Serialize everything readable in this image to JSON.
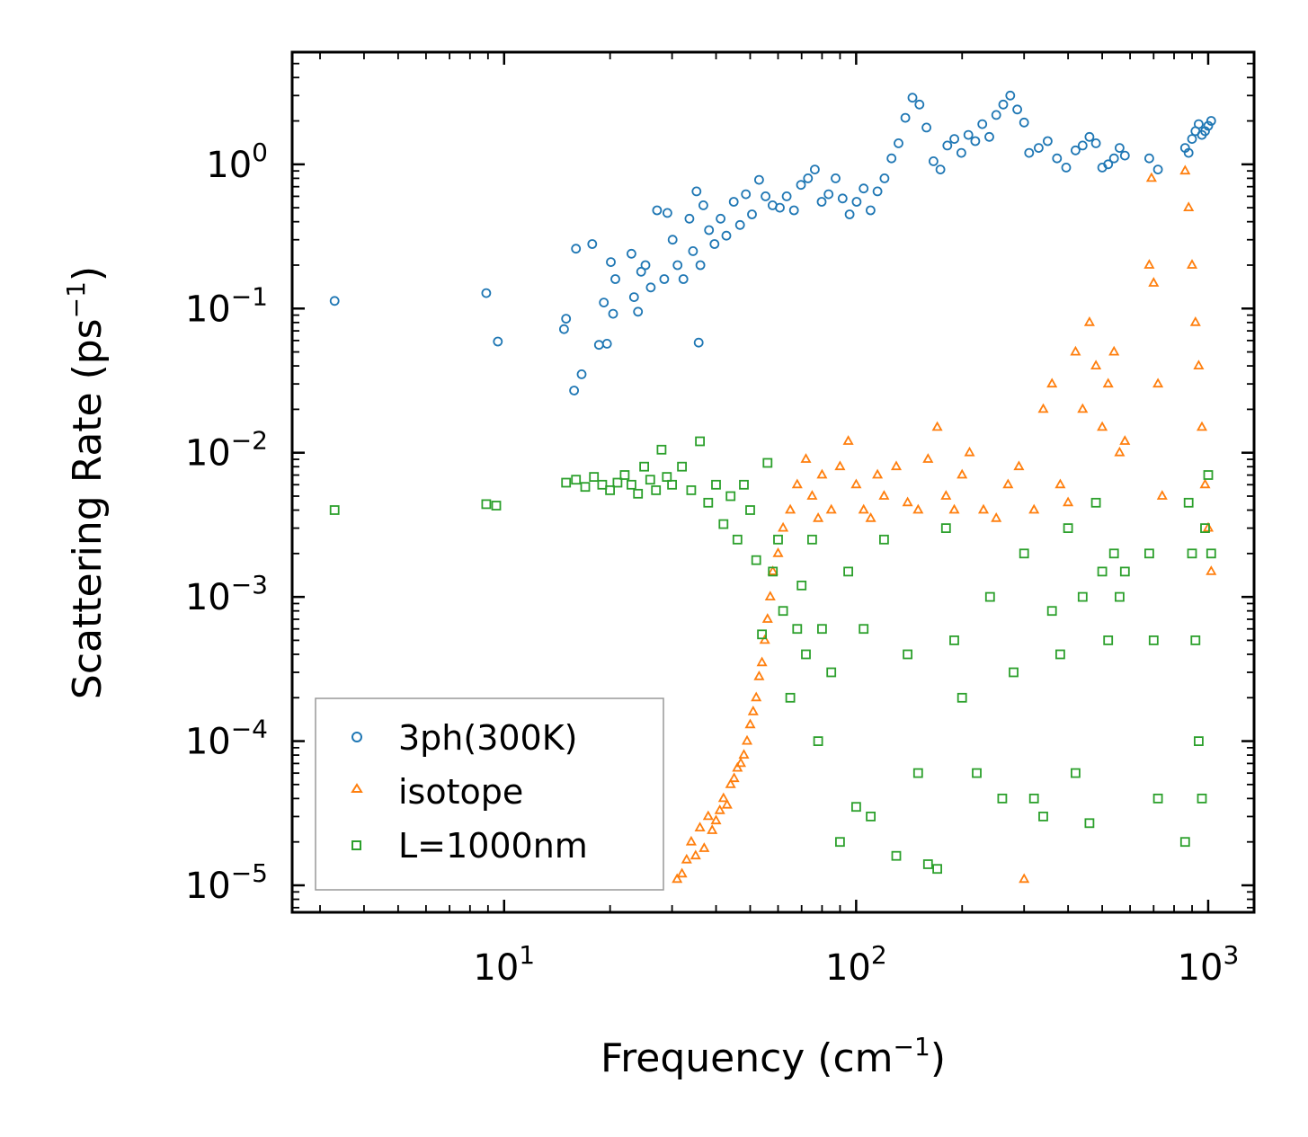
{
  "chart_data": {
    "type": "scatter",
    "title": "",
    "xlabel": "Frequency (cm",
    "xlabel_sup": "−1",
    "xlabel_close": ")",
    "ylabel": "Scattering Rate (ps",
    "ylabel_sup": "−1",
    "ylabel_close": ")",
    "xscale": "log",
    "yscale": "log",
    "xlim": [
      2.5,
      1350
    ],
    "ylim": [
      6.5e-06,
      6.0
    ],
    "x_ticks": [
      {
        "value": 10,
        "base": "10",
        "exp": "1"
      },
      {
        "value": 100,
        "base": "10",
        "exp": "2"
      },
      {
        "value": 1000,
        "base": "10",
        "exp": "3"
      }
    ],
    "y_ticks": [
      {
        "value": 1,
        "base": "10",
        "exp": "0"
      },
      {
        "value": 0.1,
        "base": "10",
        "exp": "−1"
      },
      {
        "value": 0.01,
        "base": "10",
        "exp": "−2"
      },
      {
        "value": 0.001,
        "base": "10",
        "exp": "−3"
      },
      {
        "value": 0.0001,
        "base": "10",
        "exp": "−4"
      },
      {
        "value": 1e-05,
        "base": "10",
        "exp": "−5"
      }
    ],
    "legend_position": "lower-left",
    "series": [
      {
        "name": "3ph(300K)",
        "marker": "circle",
        "color": "#1f77b4",
        "x": [
          3.3,
          8.9,
          9.6,
          14.8,
          15,
          15.8,
          16,
          16.6,
          17.8,
          18.6,
          19.2,
          19.6,
          20.1,
          20.4,
          20.7,
          23,
          23.4,
          24,
          24.5,
          25.2,
          26.1,
          27.2,
          28.5,
          29.1,
          30.1,
          31.1,
          32.3,
          33.6,
          34.4,
          35.2,
          35.7,
          36.1,
          36.8,
          38.2,
          39.6,
          41.2,
          42.8,
          44.9,
          46.8,
          48.6,
          50.6,
          53,
          55.3,
          57.9,
          60.7,
          63.5,
          66.6,
          69.7,
          73,
          76.3,
          79.8,
          83.5,
          87.4,
          91.5,
          95.8,
          100.3,
          105,
          109.9,
          115,
          120.4,
          126,
          131.9,
          138,
          144.5,
          151.3,
          158.4,
          165.8,
          173.5,
          181.6,
          190.1,
          199,
          208.3,
          218,
          228.2,
          238.9,
          250,
          261.7,
          274,
          286.8,
          300,
          310,
          330,
          350,
          372,
          395,
          420,
          440,
          460,
          480,
          500,
          520,
          540,
          560,
          580,
          680,
          720,
          860,
          880,
          900,
          920,
          940,
          960,
          980,
          1000,
          1020
        ],
        "y": [
          0.113,
          0.128,
          0.059,
          0.072,
          0.085,
          0.027,
          0.26,
          0.035,
          0.28,
          0.056,
          0.11,
          0.057,
          0.21,
          0.092,
          0.16,
          0.24,
          0.12,
          0.095,
          0.18,
          0.2,
          0.14,
          0.48,
          0.16,
          0.46,
          0.3,
          0.2,
          0.16,
          0.42,
          0.25,
          0.65,
          0.058,
          0.2,
          0.52,
          0.35,
          0.28,
          0.42,
          0.32,
          0.55,
          0.38,
          0.62,
          0.45,
          0.78,
          0.6,
          0.52,
          0.5,
          0.6,
          0.48,
          0.72,
          0.8,
          0.92,
          0.55,
          0.62,
          0.8,
          0.58,
          0.45,
          0.55,
          0.68,
          0.48,
          0.65,
          0.8,
          1.1,
          1.4,
          2.1,
          2.9,
          2.6,
          1.8,
          1.05,
          0.92,
          1.35,
          1.5,
          1.2,
          1.6,
          1.45,
          1.9,
          1.55,
          2.2,
          2.6,
          3.0,
          2.4,
          1.95,
          1.2,
          1.3,
          1.45,
          1.1,
          0.95,
          1.25,
          1.35,
          1.55,
          1.4,
          0.95,
          1.0,
          1.1,
          1.3,
          1.15,
          1.1,
          0.92,
          1.3,
          1.2,
          1.5,
          1.7,
          1.9,
          1.6,
          1.7,
          1.85,
          2.0
        ]
      },
      {
        "name": "isotope",
        "marker": "triangle",
        "color": "#ff7f0e",
        "x": [
          31,
          32,
          33,
          34,
          35,
          36,
          37,
          38,
          39,
          40,
          41,
          42,
          43,
          44,
          45,
          46,
          47,
          48,
          49,
          50,
          51,
          52,
          53,
          54,
          55,
          56,
          57,
          58,
          60,
          62,
          65,
          68,
          72,
          75,
          78,
          80,
          85,
          90,
          95,
          100,
          105,
          110,
          115,
          120,
          130,
          140,
          150,
          160,
          170,
          180,
          190,
          200,
          210,
          230,
          250,
          270,
          290,
          300,
          320,
          340,
          360,
          380,
          400,
          420,
          440,
          460,
          480,
          500,
          520,
          540,
          560,
          580,
          680,
          690,
          700,
          720,
          740,
          860,
          880,
          900,
          920,
          940,
          960,
          980,
          1000,
          1020
        ],
        "y": [
          1.1e-05,
          1.2e-05,
          1.5e-05,
          2e-05,
          1.6e-05,
          2.5e-05,
          1.8e-05,
          3e-05,
          2.4e-05,
          2.8e-05,
          3.3e-05,
          4e-05,
          3.6e-05,
          5e-05,
          5.5e-05,
          6.5e-05,
          7e-05,
          8e-05,
          0.0001,
          0.00013,
          0.00016,
          0.0002,
          0.00028,
          0.00035,
          0.0005,
          0.0007,
          0.001,
          0.0015,
          0.002,
          0.003,
          0.004,
          0.006,
          0.009,
          0.005,
          0.0035,
          0.007,
          0.004,
          0.008,
          0.012,
          0.006,
          0.004,
          0.0035,
          0.007,
          0.005,
          0.008,
          0.0045,
          0.004,
          0.009,
          0.015,
          0.005,
          0.004,
          0.007,
          0.01,
          0.004,
          0.0035,
          0.006,
          0.008,
          1.1e-05,
          0.004,
          0.02,
          0.03,
          0.006,
          0.0045,
          0.05,
          0.02,
          0.08,
          0.04,
          0.015,
          0.03,
          0.05,
          0.01,
          0.012,
          0.2,
          0.8,
          0.15,
          0.03,
          0.005,
          0.9,
          0.5,
          0.2,
          0.08,
          0.04,
          0.015,
          0.006,
          0.003,
          0.0015
        ]
      },
      {
        "name": "L=1000nm",
        "marker": "square",
        "color": "#2ca02c",
        "x": [
          3.3,
          8.9,
          9.5,
          15,
          16,
          17,
          18,
          19,
          20,
          21,
          22,
          23,
          24,
          25,
          26,
          27,
          28,
          29,
          30,
          32,
          34,
          36,
          38,
          40,
          42,
          44,
          46,
          48,
          50,
          52,
          54,
          56,
          58,
          60,
          62,
          65,
          68,
          70,
          72,
          75,
          78,
          80,
          85,
          90,
          95,
          100,
          105,
          110,
          120,
          130,
          140,
          150,
          160,
          170,
          180,
          190,
          200,
          220,
          240,
          260,
          280,
          300,
          320,
          340,
          360,
          380,
          400,
          420,
          440,
          460,
          480,
          500,
          520,
          540,
          560,
          580,
          680,
          700,
          720,
          860,
          880,
          900,
          920,
          940,
          960,
          980,
          1000,
          1020
        ],
        "y": [
          0.004,
          0.0044,
          0.0043,
          0.0062,
          0.0065,
          0.0058,
          0.0068,
          0.006,
          0.0055,
          0.0062,
          0.007,
          0.006,
          0.0052,
          0.008,
          0.0065,
          0.0055,
          0.0105,
          0.0068,
          0.006,
          0.008,
          0.0055,
          0.012,
          0.0045,
          0.006,
          0.0032,
          0.005,
          0.0025,
          0.006,
          0.004,
          0.0018,
          0.00055,
          0.0085,
          0.0015,
          0.0025,
          0.0008,
          0.0002,
          0.0006,
          0.0012,
          0.0004,
          0.0025,
          0.0001,
          0.0006,
          0.0003,
          2e-05,
          0.0015,
          3.5e-05,
          0.0006,
          3e-05,
          0.0025,
          1.6e-05,
          0.0004,
          6e-05,
          1.4e-05,
          1.3e-05,
          0.003,
          0.0005,
          0.0002,
          6e-05,
          0.001,
          4e-05,
          0.0003,
          0.002,
          4e-05,
          3e-05,
          0.0008,
          0.0004,
          0.003,
          6e-05,
          0.001,
          2.7e-05,
          0.0045,
          0.0015,
          0.0005,
          0.002,
          0.001,
          0.0015,
          0.002,
          0.0005,
          4e-05,
          2e-05,
          0.0045,
          0.002,
          0.0005,
          0.0001,
          4e-05,
          0.003,
          0.007,
          0.002
        ]
      }
    ]
  }
}
